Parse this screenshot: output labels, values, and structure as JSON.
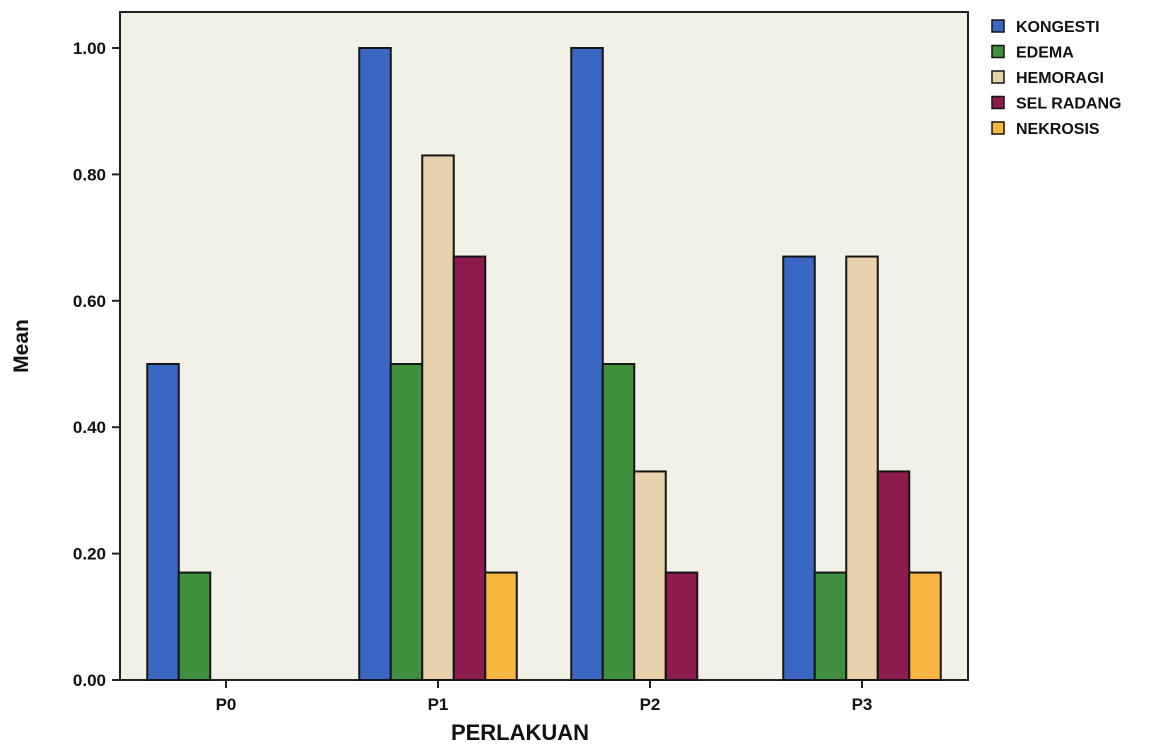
{
  "chart_data": {
    "type": "bar",
    "title": "",
    "xlabel": "PERLAKUAN",
    "ylabel": "Mean",
    "categories": [
      "P0",
      "P1",
      "P2",
      "P3"
    ],
    "ylim": [
      0,
      1.0
    ],
    "yticks": [
      0.0,
      0.2,
      0.4,
      0.6,
      0.8,
      1.0
    ],
    "ytick_labels": [
      "0.00",
      "0.20",
      "0.40",
      "0.60",
      "0.80",
      "1.00"
    ],
    "grid": false,
    "legend_position": "right",
    "series": [
      {
        "name": "KONGESTI",
        "color": "#3a66c4",
        "values": [
          0.5,
          1.0,
          1.0,
          0.67
        ]
      },
      {
        "name": "EDEMA",
        "color": "#3f8f3c",
        "values": [
          0.17,
          0.5,
          0.5,
          0.17
        ]
      },
      {
        "name": "HEMORAGI",
        "color": "#e8d2ab",
        "values": [
          0.0,
          0.83,
          0.33,
          0.67
        ]
      },
      {
        "name": "SEL RADANG",
        "color": "#8c1c4e",
        "values": [
          0.0,
          0.67,
          0.17,
          0.33
        ]
      },
      {
        "name": "NEKROSIS",
        "color": "#f6b640",
        "values": [
          0.0,
          0.17,
          0.0,
          0.17
        ]
      }
    ],
    "plot_background": "#f2f1e8"
  }
}
